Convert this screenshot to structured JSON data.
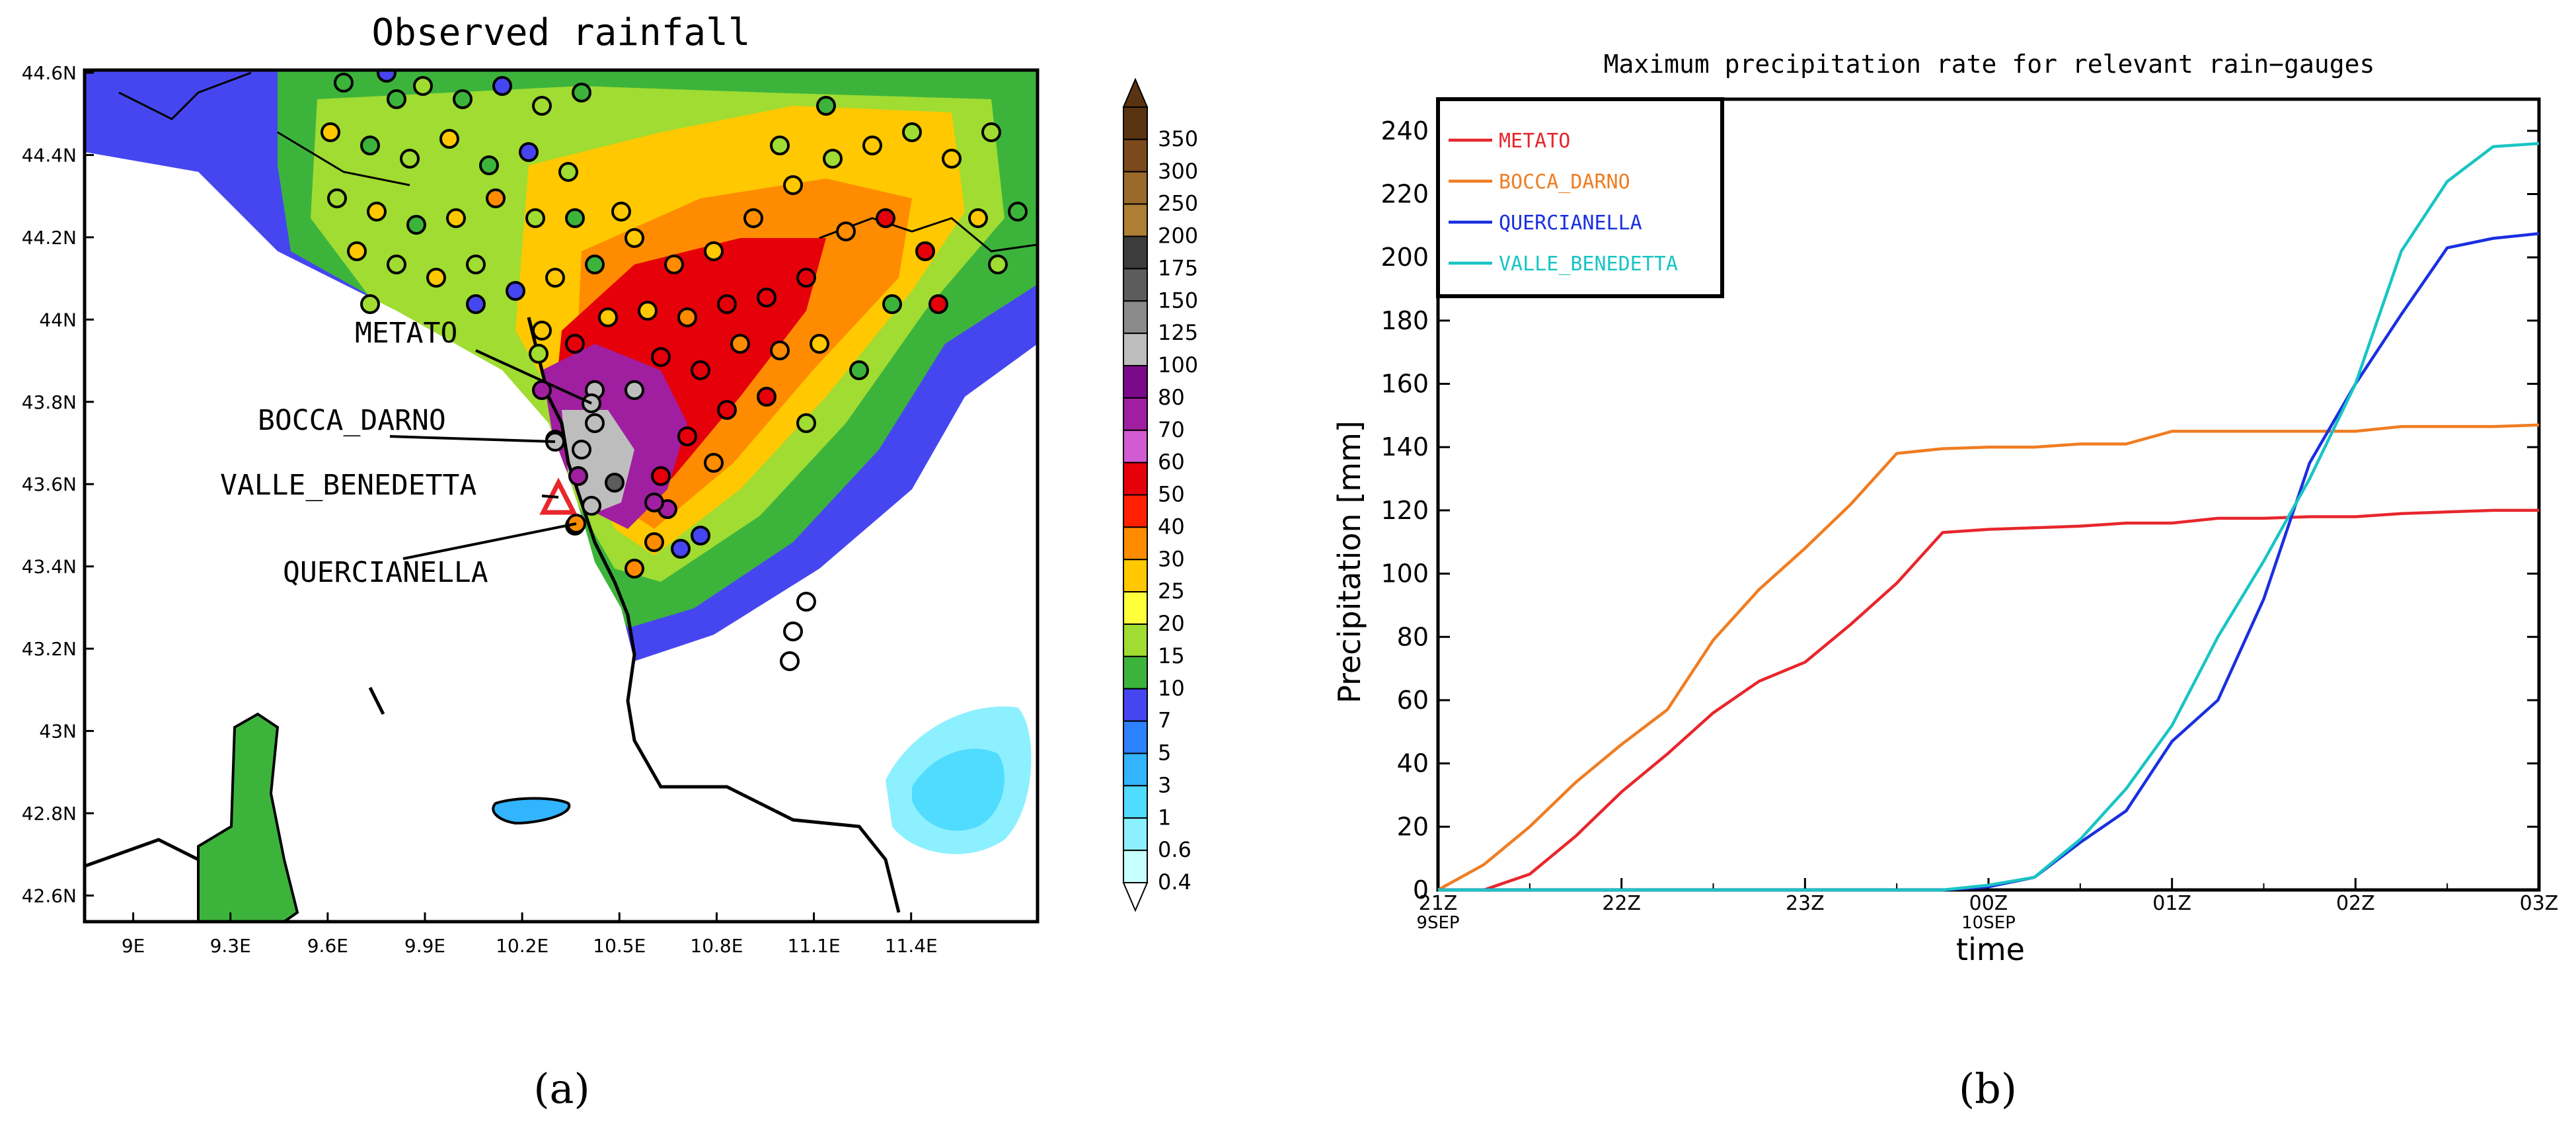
{
  "panel_a": {
    "title": "Observed rainfall",
    "caption": "(a)",
    "lon_ticks": [
      "9E",
      "9.3E",
      "9.6E",
      "9.9E",
      "10.2E",
      "10.5E",
      "10.8E",
      "11.1E",
      "11.4E"
    ],
    "lat_ticks": [
      "44.6N",
      "44.4N",
      "44.2N",
      "44N",
      "43.8N",
      "43.6N",
      "43.4N",
      "43.2N",
      "43N",
      "42.8N",
      "42.6N"
    ],
    "station_labels": [
      "METATO",
      "BOCCA_DARNO",
      "VALLE_BENEDETTA",
      "QUERCIANELLA"
    ],
    "colorbar": {
      "labels": [
        "350",
        "300",
        "250",
        "200",
        "175",
        "150",
        "125",
        "100",
        "80",
        "70",
        "60",
        "50",
        "40",
        "30",
        "25",
        "20",
        "15",
        "10",
        "7",
        "5",
        "3",
        "1",
        "0.6",
        "0.4"
      ],
      "colors": [
        "#5a3312",
        "#7a4a1c",
        "#9a6a2a",
        "#ad7e34",
        "#3c3c3c",
        "#5c5c5c",
        "#8a8a8a",
        "#bdbdbd",
        "#7a0a8a",
        "#a01ea0",
        "#d25ad2",
        "#e6000a",
        "#ff2000",
        "#ff8c00",
        "#ffc800",
        "#ffff3c",
        "#a0dc32",
        "#3cb43c",
        "#4646f0",
        "#2d82ff",
        "#32b4ff",
        "#50dcff",
        "#8cf0ff",
        "#c8ffff"
      ]
    }
  },
  "panel_b": {
    "caption": "(b)",
    "legend": [
      "METATO",
      "BOCCA_DARNO",
      "QUERCIANELLA",
      "VALLE_BENEDETTA"
    ]
  },
  "chart_data": [
    {
      "type": "line",
      "title": "Maximum precipitation rate for relevant rain−gauges",
      "xlabel": "time",
      "ylabel": "Precipitation [mm]",
      "x_tick_labels": [
        "21Z",
        "22Z",
        "23Z",
        "00Z",
        "01Z",
        "02Z",
        "03Z"
      ],
      "x_tick_sublabels": [
        "9SEP",
        "",
        "",
        "10SEP",
        "",
        "",
        ""
      ],
      "x": [
        0,
        0.25,
        0.5,
        0.75,
        1,
        1.25,
        1.5,
        1.75,
        2,
        2.25,
        2.5,
        2.75,
        3,
        3.25,
        3.5,
        3.75,
        4,
        4.25,
        4.5,
        4.75,
        5,
        5.25,
        5.5,
        5.75,
        6
      ],
      "xlim": [
        0,
        6
      ],
      "ylim": [
        0,
        250
      ],
      "yticks": [
        0,
        20,
        40,
        60,
        80,
        100,
        120,
        140,
        160,
        180,
        200,
        220,
        240
      ],
      "series": [
        {
          "name": "METATO",
          "color": "#e8262c",
          "values": [
            0,
            0,
            5,
            17,
            31,
            43,
            56,
            66,
            72,
            84,
            97,
            113,
            114,
            114.5,
            115,
            116,
            116,
            117.5,
            117.5,
            118,
            118,
            119,
            119.5,
            120,
            120
          ]
        },
        {
          "name": "BOCCA_DARNO",
          "color": "#ef7d22",
          "values": [
            0,
            8,
            20,
            34,
            46,
            57,
            79,
            95,
            108,
            122,
            138,
            139.5,
            140,
            140,
            141,
            141,
            145,
            145,
            145,
            145,
            145,
            146.5,
            146.5,
            146.5,
            147
          ]
        },
        {
          "name": "QUERCIANELLA",
          "color": "#1a2fe0",
          "values": [
            0,
            0,
            0,
            0,
            0,
            0,
            0,
            0,
            0,
            0,
            0,
            0,
            1,
            4,
            15,
            25,
            47,
            60,
            92,
            135,
            160,
            182,
            203,
            206,
            207.5
          ]
        },
        {
          "name": "VALLE_BENEDETTA",
          "color": "#19c4c4",
          "values": [
            0,
            0,
            0,
            0,
            0,
            0,
            0,
            0,
            0,
            0,
            0,
            0,
            1.5,
            4,
            16,
            32,
            52,
            80,
            104,
            130,
            160,
            202,
            224,
            235,
            236
          ]
        }
      ]
    }
  ]
}
